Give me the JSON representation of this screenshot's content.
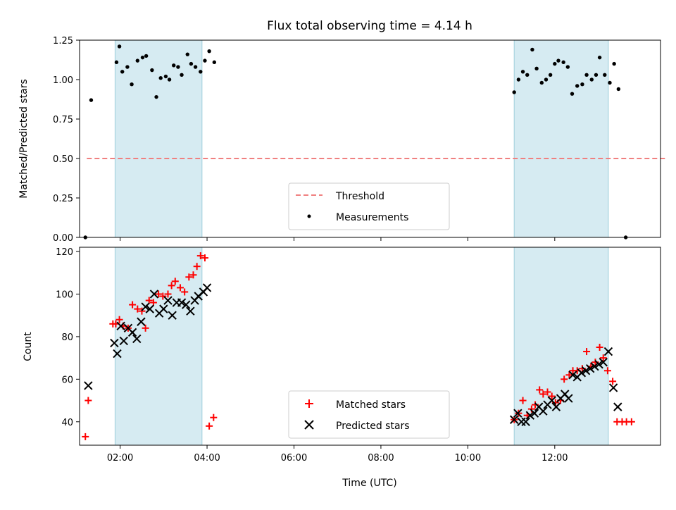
{
  "chart_data": {
    "title": "Flux total observing time = 4.14 h",
    "xlabel": "Time (UTC)",
    "x_ticks": [
      "02:00",
      "04:00",
      "06:00",
      "08:00",
      "10:00",
      "12:00"
    ],
    "xlim": [
      "01:04",
      "14:26"
    ],
    "shaded_intervals": [
      [
        "01:53",
        "03:53"
      ],
      [
        "11:04",
        "13:14"
      ]
    ],
    "shade_color": "#add8e6",
    "panels": [
      {
        "type": "scatter",
        "ylabel": "Matched/Predicted stars",
        "ylim": [
          0,
          1.25
        ],
        "y_ticks": [
          "0.00",
          "0.25",
          "0.50",
          "0.75",
          "1.00",
          "1.25"
        ],
        "legend_position": "lower center",
        "threshold": {
          "name": "Threshold",
          "value": 0.5,
          "x_range": [
            "01:14",
            "14:34"
          ],
          "color": "#f08080",
          "style": "dashed"
        },
        "series": [
          {
            "name": "Measurements",
            "marker": "dot",
            "color": "#000000",
            "x": [
              "01:12",
              "01:20",
              "01:55",
              "01:59",
              "02:03",
              "02:10",
              "02:16",
              "02:24",
              "02:31",
              "02:36",
              "02:44",
              "02:50",
              "02:56",
              "03:03",
              "03:08",
              "03:14",
              "03:20",
              "03:25",
              "03:33",
              "03:38",
              "03:44",
              "03:51",
              "03:57",
              "04:03",
              "04:10",
              "11:04",
              "11:10",
              "11:16",
              "11:22",
              "11:29",
              "11:35",
              "11:42",
              "11:48",
              "11:54",
              "12:00",
              "12:05",
              "12:12",
              "12:18",
              "12:24",
              "12:31",
              "12:38",
              "12:44",
              "12:51",
              "12:57",
              "13:02",
              "13:09",
              "13:16",
              "13:22",
              "13:28",
              "13:38"
            ],
            "y": [
              0.0,
              0.87,
              1.11,
              1.21,
              1.05,
              1.08,
              0.97,
              1.12,
              1.14,
              1.15,
              1.06,
              0.89,
              1.01,
              1.02,
              1.0,
              1.09,
              1.08,
              1.03,
              1.16,
              1.1,
              1.08,
              1.05,
              1.12,
              1.18,
              1.11,
              0.92,
              1.0,
              1.05,
              1.03,
              1.19,
              1.07,
              0.98,
              1.0,
              1.03,
              1.1,
              1.12,
              1.11,
              1.08,
              0.91,
              0.96,
              0.97,
              1.03,
              1.0,
              1.03,
              1.14,
              1.03,
              0.98,
              1.1,
              0.94,
              0.0
            ]
          }
        ]
      },
      {
        "type": "scatter",
        "ylabel": "Count",
        "ylim": [
          29,
          122
        ],
        "y_ticks": [
          "40",
          "60",
          "80",
          "100",
          "120"
        ],
        "legend_position": "lower center",
        "series": [
          {
            "name": "Matched stars",
            "marker": "plus",
            "color": "#ff0000",
            "x": [
              "01:12",
              "01:16",
              "01:50",
              "01:54",
              "01:59",
              "02:04",
              "02:11",
              "02:17",
              "02:24",
              "02:30",
              "02:35",
              "02:40",
              "02:46",
              "02:53",
              "02:59",
              "03:06",
              "03:11",
              "03:16",
              "03:23",
              "03:29",
              "03:35",
              "03:41",
              "03:46",
              "03:51",
              "03:57",
              "04:03",
              "04:09",
              "11:04",
              "11:10",
              "11:16",
              "11:22",
              "11:28",
              "11:33",
              "11:39",
              "11:44",
              "11:50",
              "11:56",
              "12:01",
              "12:08",
              "12:13",
              "12:20",
              "12:25",
              "12:31",
              "12:38",
              "12:44",
              "12:50",
              "12:56",
              "13:02",
              "13:07",
              "13:13",
              "13:20",
              "13:26",
              "13:33",
              "13:39",
              "13:46"
            ],
            "y": [
              33,
              50,
              86,
              86,
              88,
              85,
              84,
              95,
              93,
              92,
              84,
              97,
              96,
              100,
              99,
              100,
              104,
              106,
              103,
              101,
              108,
              109,
              113,
              118,
              117,
              38,
              42,
              41,
              44,
              50,
              43,
              46,
              48,
              55,
              53,
              54,
              52,
              49,
              50,
              60,
              62,
              64,
              64,
              65,
              73,
              66,
              68,
              75,
              70,
              64,
              59,
              40,
              40,
              40,
              40
            ]
          },
          {
            "name": "Predicted stars",
            "marker": "x",
            "color": "#000000",
            "x": [
              "01:16",
              "01:52",
              "01:56",
              "02:01",
              "02:05",
              "02:11",
              "02:17",
              "02:23",
              "02:29",
              "02:35",
              "02:41",
              "02:47",
              "02:54",
              "03:00",
              "03:06",
              "03:12",
              "03:18",
              "03:25",
              "03:31",
              "03:37",
              "03:43",
              "03:48",
              "03:55",
              "04:00",
              "11:04",
              "11:09",
              "11:14",
              "11:20",
              "11:26",
              "11:32",
              "11:38",
              "11:44",
              "11:50",
              "11:56",
              "12:02",
              "12:08",
              "12:14",
              "12:19",
              "12:25",
              "12:31",
              "12:37",
              "12:43",
              "12:49",
              "12:55",
              "13:01",
              "13:07",
              "13:14",
              "13:21",
              "13:27"
            ],
            "y": [
              57,
              77,
              72,
              85,
              78,
              84,
              82,
              79,
              87,
              94,
              93,
              100,
              91,
              93,
              97,
              90,
              96,
              96,
              95,
              92,
              97,
              99,
              101,
              103,
              41,
              44,
              40,
              40,
              43,
              44,
              47,
              45,
              48,
              50,
              47,
              51,
              53,
              51,
              62,
              61,
              63,
              64,
              65,
              66,
              67,
              68,
              73,
              56,
              47
            ]
          }
        ]
      }
    ]
  }
}
